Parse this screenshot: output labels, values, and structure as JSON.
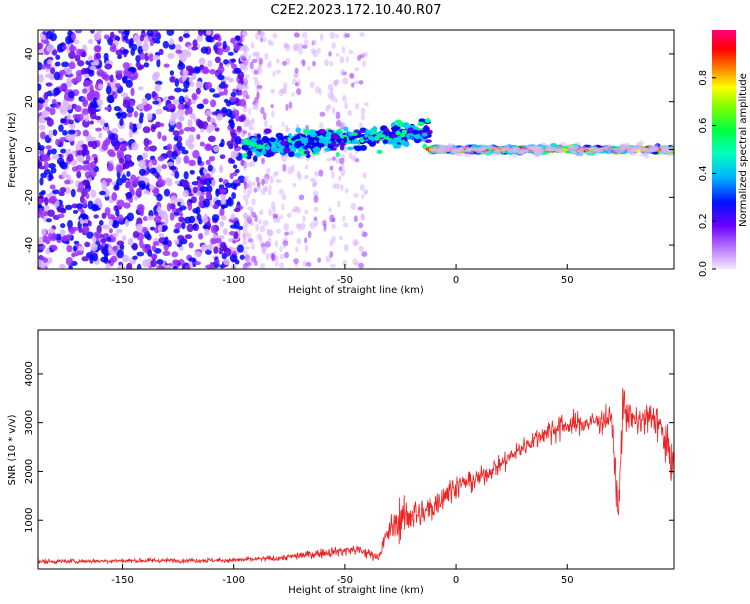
{
  "title": "C2E2.2023.172.10.40.R07",
  "colors": {
    "spectrogram_cmap": [
      "#f2e6ff",
      "#d9b3ff",
      "#9b30ff",
      "#5a00e6",
      "#0000ff",
      "#00c8ff",
      "#00ff80",
      "#80ff00",
      "#ffff00",
      "#ff8000",
      "#ff0000",
      "#ff0080"
    ],
    "snr_line": "#ee2222",
    "axis": "#000000"
  },
  "chart_data": [
    {
      "type": "heatmap",
      "title": "",
      "xlabel": "Height of straight line (km)",
      "ylabel": "Frequency (Hz)",
      "xlim": [
        -188,
        98
      ],
      "ylim": [
        -50,
        50
      ],
      "xticks": [
        -150,
        -100,
        -50,
        0,
        50
      ],
      "yticks": [
        -40,
        -20,
        0,
        20,
        40
      ],
      "colorbar": {
        "label": "Normalized spectral amplitude",
        "range": [
          0.0,
          1.0
        ],
        "ticks": [
          "0.0",
          "0.2",
          "0.4",
          "0.6",
          "0.8"
        ]
      },
      "regions": [
        {
          "x": [
            -188,
            -95
          ],
          "y": [
            -50,
            50
          ],
          "amplitude": 0.08,
          "note": "diffuse noise"
        },
        {
          "x": [
            -95,
            -15
          ],
          "y": [
            -5,
            10
          ],
          "amplitude": 0.35
        },
        {
          "x": [
            -12,
            98
          ],
          "y": [
            -3,
            3
          ],
          "amplitude": 0.8
        }
      ]
    },
    {
      "type": "line",
      "title": "",
      "xlabel": "Height of straight line (km)",
      "ylabel": "SNR (10 * v/v)",
      "xlim": [
        -188,
        98
      ],
      "ylim": [
        0,
        4900
      ],
      "xticks": [
        -150,
        -100,
        -50,
        0,
        50
      ],
      "yticks": [
        1000,
        2000,
        3000,
        4000
      ],
      "series": [
        {
          "x": [
            -188,
            -150,
            -100,
            -80,
            -60,
            -45,
            -35,
            -30,
            -25,
            -20,
            -15,
            -10,
            -5,
            0,
            10,
            20,
            30,
            40,
            45,
            50,
            60,
            70,
            73,
            75,
            80,
            90,
            98
          ],
          "mean": [
            150,
            170,
            180,
            220,
            330,
            400,
            250,
            800,
            1000,
            1150,
            1100,
            1300,
            1550,
            1700,
            1850,
            2150,
            2500,
            2800,
            2900,
            2950,
            3000,
            3100,
            1000,
            3400,
            3000,
            3100,
            2100
          ],
          "spread": [
            60,
            60,
            60,
            80,
            120,
            160,
            120,
            350,
            500,
            500,
            500,
            400,
            350,
            300,
            250,
            250,
            250,
            300,
            400,
            300,
            300,
            350,
            600,
            600,
            400,
            500,
            600
          ]
        }
      ]
    }
  ]
}
